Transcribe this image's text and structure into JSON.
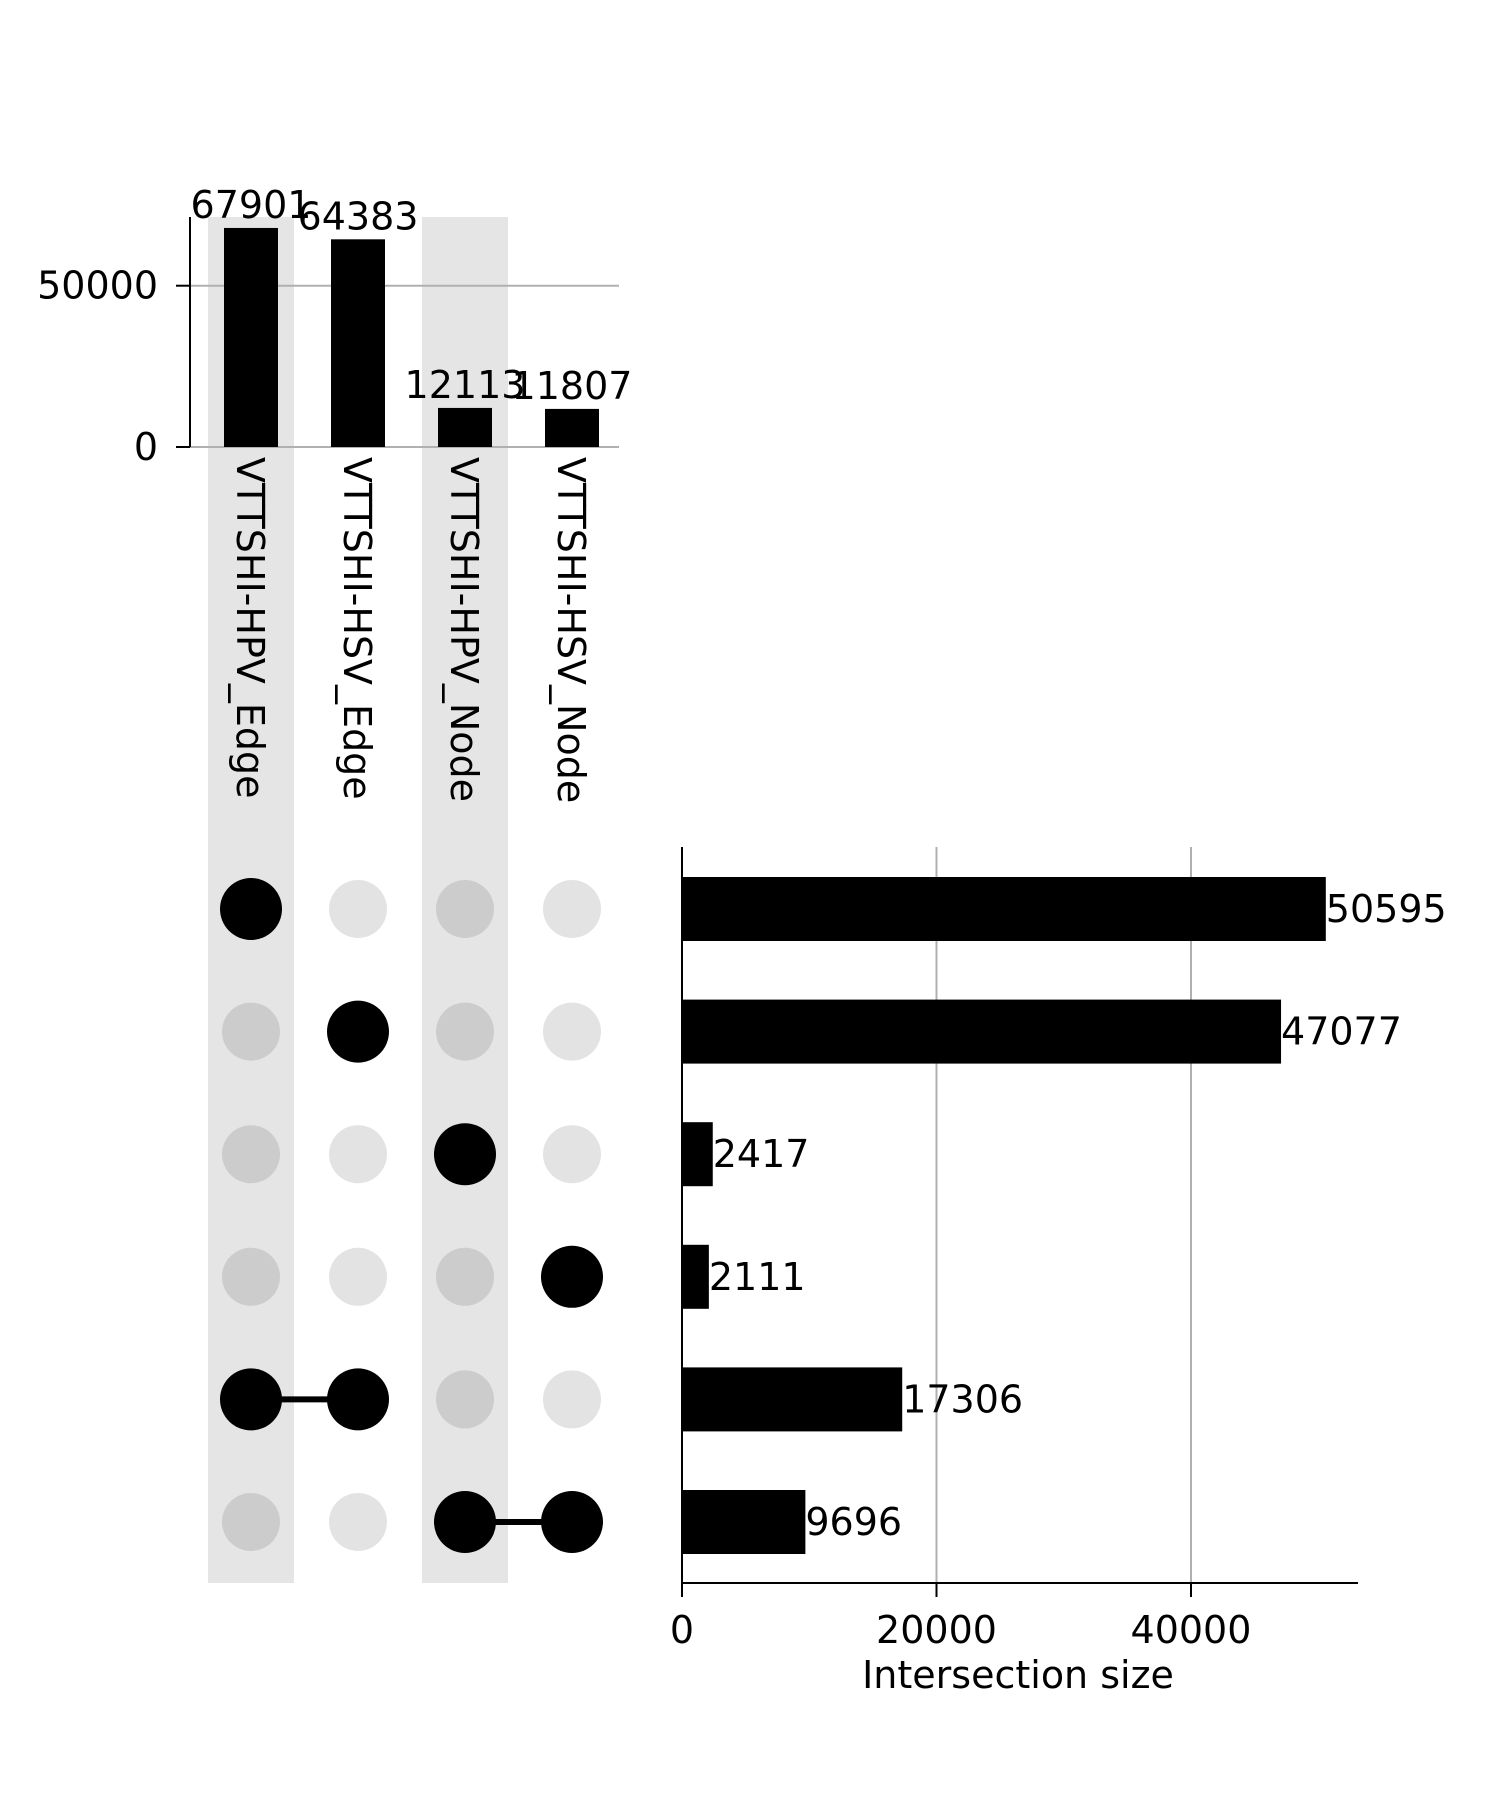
{
  "chart_data": {
    "type": "upset",
    "sets": [
      "VTTSHI-HPV_Edge",
      "VTTSHI-HSV_Edge",
      "VTTSHI-HPV_Node",
      "VTTSHI-HSV_Node"
    ],
    "set_sizes": [
      67901,
      64383,
      12113,
      11807
    ],
    "set_sizes_axis": {
      "ticks": [
        0,
        50000
      ],
      "ylim": [
        0,
        71300
      ]
    },
    "intersections": [
      {
        "members": [
          true,
          false,
          false,
          false
        ],
        "size": 50595
      },
      {
        "members": [
          false,
          true,
          false,
          false
        ],
        "size": 47077
      },
      {
        "members": [
          false,
          false,
          true,
          false
        ],
        "size": 2417
      },
      {
        "members": [
          false,
          false,
          false,
          true
        ],
        "size": 2111
      },
      {
        "members": [
          true,
          true,
          false,
          false
        ],
        "size": 17306
      },
      {
        "members": [
          false,
          false,
          true,
          true
        ],
        "size": 9696
      }
    ],
    "intersection_axis": {
      "label": "Intersection size",
      "ticks": [
        0,
        20000,
        40000
      ],
      "xlim": [
        0,
        53125
      ]
    },
    "grid": true,
    "colors": {
      "bar": "#000000",
      "dot_active": "#000000",
      "dot_inactive_shaded_column": "#cccccc",
      "dot_inactive": "#e3e3e3",
      "shade": "#e5e5e5",
      "grid": "#b0b0b0"
    }
  }
}
